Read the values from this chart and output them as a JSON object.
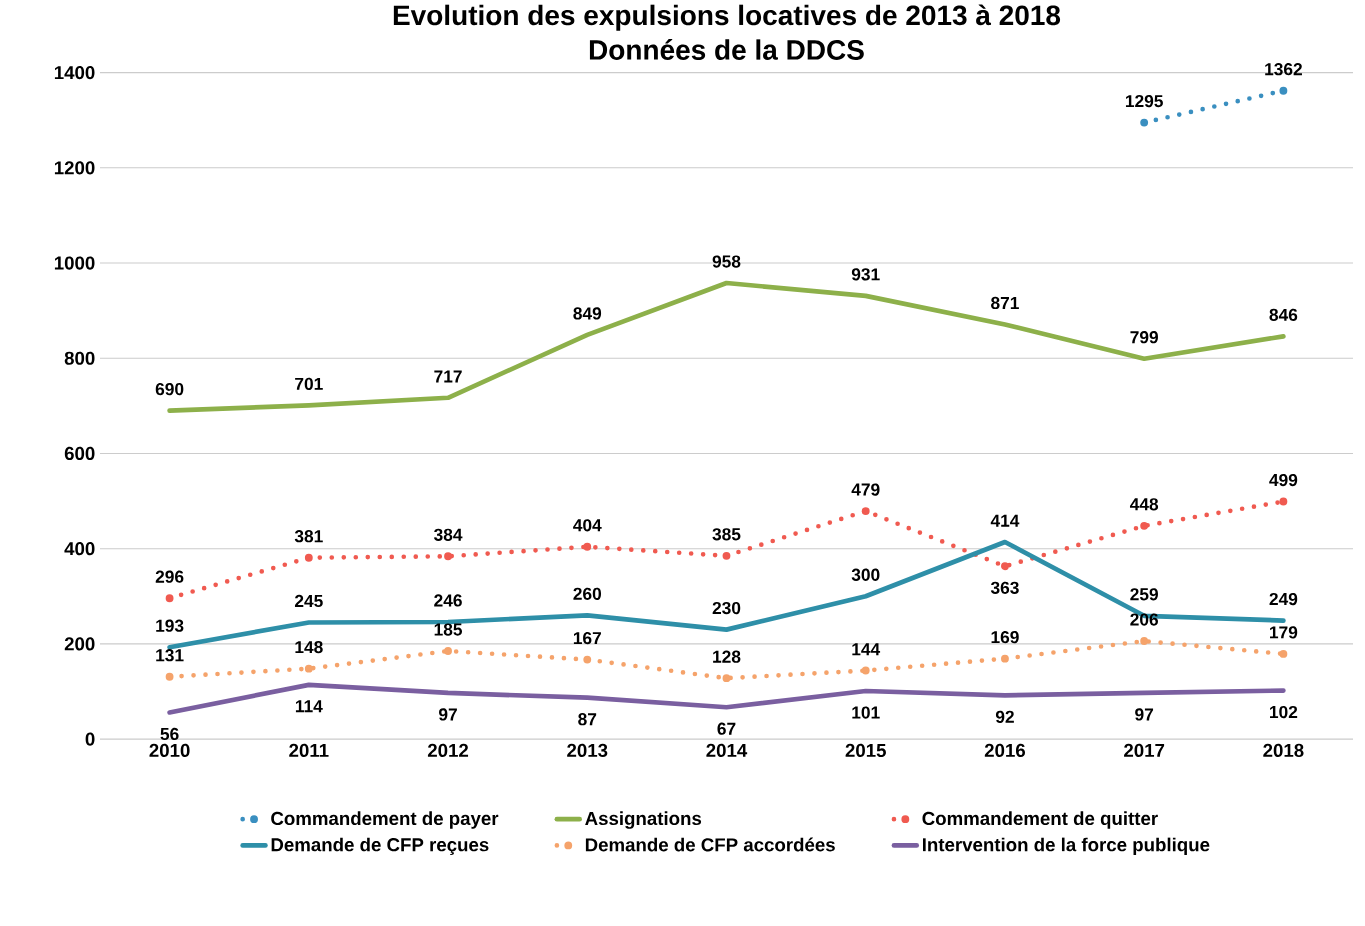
{
  "chart_data": {
    "type": "line",
    "title": "Evolution des expulsions locatives de 2013 à 2018\nDonnées de la DDCS",
    "categories": [
      "2010",
      "2011",
      "2012",
      "2013",
      "2014",
      "2015",
      "2016",
      "2017",
      "2018"
    ],
    "series": [
      {
        "name": "Commandement de payer",
        "color": "#3a8fc0",
        "line_style": "dotted",
        "values": [
          null,
          null,
          null,
          null,
          null,
          null,
          null,
          1295,
          1362
        ]
      },
      {
        "name": "Assignations",
        "color": "#8db04a",
        "line_style": "solid",
        "values": [
          690,
          701,
          717,
          849,
          958,
          931,
          871,
          799,
          846
        ]
      },
      {
        "name": "Commandement de quitter",
        "color": "#f05a50",
        "line_style": "dotted",
        "values": [
          296,
          381,
          384,
          404,
          385,
          479,
          363,
          448,
          499
        ]
      },
      {
        "name": "Demande de CFP reçues",
        "color": "#2e8fa8",
        "line_style": "solid",
        "values": [
          193,
          245,
          246,
          260,
          230,
          300,
          414,
          259,
          249
        ]
      },
      {
        "name": "Demande de CFP accordées",
        "color": "#f5a36b",
        "line_style": "dotted",
        "values": [
          131,
          148,
          185,
          167,
          128,
          144,
          169,
          206,
          179
        ]
      },
      {
        "name": "Intervention de la force publique",
        "color": "#7a5fa0",
        "line_style": "solid",
        "values": [
          56,
          114,
          97,
          87,
          67,
          101,
          92,
          97,
          102
        ]
      }
    ],
    "ylim": [
      0,
      1400
    ],
    "yticks": [
      0,
      200,
      400,
      600,
      800,
      1000,
      1200,
      1400
    ],
    "grid": "y",
    "legend": "bottom",
    "marker": "none",
    "data_labels": true
  }
}
